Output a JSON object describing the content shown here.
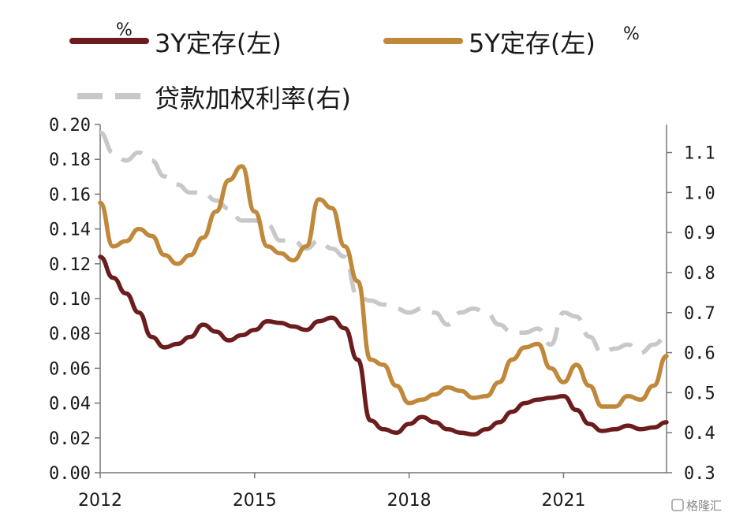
{
  "chart_data": {
    "type": "line",
    "x_range": [
      "2012-01",
      "2022-12"
    ],
    "xticks": [
      {
        "year": 2012,
        "label": "2012"
      },
      {
        "year": 2015,
        "label": "2015"
      },
      {
        "year": 2018,
        "label": "2018"
      },
      {
        "year": 2021,
        "label": "2021"
      }
    ],
    "y_left": {
      "unit": "%",
      "ylim": [
        0,
        0.2
      ],
      "ticks": [
        0,
        0.02,
        0.04,
        0.06,
        0.08,
        0.1,
        0.12,
        0.14,
        0.16,
        0.18,
        0.2
      ],
      "tick_labels": [
        "0.00",
        "0.02",
        "0.04",
        "0.06",
        "0.08",
        "0.10",
        "0.12",
        "0.14",
        "0.16",
        "0.18",
        "0.20"
      ]
    },
    "y_right": {
      "unit": "%",
      "ylim": [
        0.3,
        1.17
      ],
      "ticks": [
        0.3,
        0.4,
        0.5,
        0.6,
        0.7,
        0.8,
        0.9,
        1.0,
        1.1
      ],
      "tick_labels": [
        "0.3",
        "0.4",
        "0.5",
        "0.6",
        "0.7",
        "0.8",
        "0.9",
        "1.0",
        "1.1"
      ]
    },
    "grid": false,
    "legend_position": "top",
    "series": [
      {
        "name": "3Y定存(左)",
        "axis": "left",
        "color": "#6b1d1d",
        "style": "solid",
        "points": [
          [
            2012.0,
            0.124
          ],
          [
            2012.25,
            0.112
          ],
          [
            2012.5,
            0.103
          ],
          [
            2012.75,
            0.092
          ],
          [
            2013.0,
            0.078
          ],
          [
            2013.25,
            0.072
          ],
          [
            2013.5,
            0.074
          ],
          [
            2013.75,
            0.078
          ],
          [
            2014.0,
            0.085
          ],
          [
            2014.25,
            0.081
          ],
          [
            2014.5,
            0.076
          ],
          [
            2014.75,
            0.079
          ],
          [
            2015.0,
            0.082
          ],
          [
            2015.25,
            0.087
          ],
          [
            2015.5,
            0.086
          ],
          [
            2015.75,
            0.084
          ],
          [
            2016.0,
            0.082
          ],
          [
            2016.25,
            0.087
          ],
          [
            2016.5,
            0.089
          ],
          [
            2016.75,
            0.083
          ],
          [
            2017.0,
            0.065
          ],
          [
            2017.25,
            0.03
          ],
          [
            2017.5,
            0.025
          ],
          [
            2017.75,
            0.023
          ],
          [
            2018.0,
            0.028
          ],
          [
            2018.25,
            0.032
          ],
          [
            2018.5,
            0.029
          ],
          [
            2018.75,
            0.025
          ],
          [
            2019.0,
            0.023
          ],
          [
            2019.25,
            0.022
          ],
          [
            2019.5,
            0.025
          ],
          [
            2019.75,
            0.029
          ],
          [
            2020.0,
            0.035
          ],
          [
            2020.25,
            0.04
          ],
          [
            2020.5,
            0.042
          ],
          [
            2020.75,
            0.043
          ],
          [
            2021.0,
            0.044
          ],
          [
            2021.25,
            0.036
          ],
          [
            2021.5,
            0.028
          ],
          [
            2021.75,
            0.024
          ],
          [
            2022.0,
            0.025
          ],
          [
            2022.25,
            0.027
          ],
          [
            2022.5,
            0.025
          ],
          [
            2022.75,
            0.026
          ],
          [
            2023.0,
            0.029
          ]
        ]
      },
      {
        "name": "5Y定存(左)",
        "axis": "left",
        "color": "#c0883a",
        "style": "solid",
        "points": [
          [
            2012.0,
            0.155
          ],
          [
            2012.25,
            0.13
          ],
          [
            2012.5,
            0.133
          ],
          [
            2012.75,
            0.14
          ],
          [
            2013.0,
            0.136
          ],
          [
            2013.25,
            0.125
          ],
          [
            2013.5,
            0.12
          ],
          [
            2013.75,
            0.125
          ],
          [
            2014.0,
            0.135
          ],
          [
            2014.25,
            0.15
          ],
          [
            2014.5,
            0.168
          ],
          [
            2014.75,
            0.176
          ],
          [
            2015.0,
            0.15
          ],
          [
            2015.25,
            0.13
          ],
          [
            2015.5,
            0.126
          ],
          [
            2015.75,
            0.122
          ],
          [
            2016.0,
            0.13
          ],
          [
            2016.25,
            0.157
          ],
          [
            2016.5,
            0.152
          ],
          [
            2016.75,
            0.13
          ],
          [
            2017.0,
            0.11
          ],
          [
            2017.25,
            0.065
          ],
          [
            2017.5,
            0.062
          ],
          [
            2017.75,
            0.05
          ],
          [
            2018.0,
            0.04
          ],
          [
            2018.25,
            0.042
          ],
          [
            2018.5,
            0.045
          ],
          [
            2018.75,
            0.049
          ],
          [
            2019.0,
            0.047
          ],
          [
            2019.25,
            0.043
          ],
          [
            2019.5,
            0.044
          ],
          [
            2019.75,
            0.052
          ],
          [
            2020.0,
            0.065
          ],
          [
            2020.25,
            0.072
          ],
          [
            2020.5,
            0.074
          ],
          [
            2020.75,
            0.06
          ],
          [
            2021.0,
            0.052
          ],
          [
            2021.25,
            0.062
          ],
          [
            2021.5,
            0.05
          ],
          [
            2021.75,
            0.038
          ],
          [
            2022.0,
            0.038
          ],
          [
            2022.25,
            0.044
          ],
          [
            2022.5,
            0.042
          ],
          [
            2022.75,
            0.05
          ],
          [
            2023.0,
            0.067
          ]
        ]
      },
      {
        "name": "贷款加权利率(右)",
        "axis": "right",
        "color": "#c8c8c8",
        "style": "dashed",
        "points": [
          [
            2012.0,
            1.15
          ],
          [
            2012.25,
            1.1
          ],
          [
            2012.5,
            1.08
          ],
          [
            2012.75,
            1.1
          ],
          [
            2013.0,
            1.08
          ],
          [
            2013.25,
            1.04
          ],
          [
            2013.5,
            1.02
          ],
          [
            2013.75,
            1.0
          ],
          [
            2014.0,
            1.0
          ],
          [
            2014.25,
            0.98
          ],
          [
            2014.5,
            0.96
          ],
          [
            2014.75,
            0.93
          ],
          [
            2015.0,
            0.93
          ],
          [
            2015.25,
            0.92
          ],
          [
            2015.5,
            0.88
          ],
          [
            2015.75,
            0.88
          ],
          [
            2016.0,
            0.86
          ],
          [
            2016.25,
            0.88
          ],
          [
            2016.5,
            0.86
          ],
          [
            2016.75,
            0.84
          ],
          [
            2017.0,
            0.74
          ],
          [
            2017.25,
            0.73
          ],
          [
            2017.5,
            0.72
          ],
          [
            2017.75,
            0.71
          ],
          [
            2018.0,
            0.7
          ],
          [
            2018.25,
            0.71
          ],
          [
            2018.5,
            0.7
          ],
          [
            2018.75,
            0.67
          ],
          [
            2019.0,
            0.7
          ],
          [
            2019.25,
            0.71
          ],
          [
            2019.5,
            0.7
          ],
          [
            2019.75,
            0.67
          ],
          [
            2020.0,
            0.65
          ],
          [
            2020.25,
            0.65
          ],
          [
            2020.5,
            0.66
          ],
          [
            2020.75,
            0.62
          ],
          [
            2021.0,
            0.7
          ],
          [
            2021.25,
            0.69
          ],
          [
            2021.5,
            0.64
          ],
          [
            2021.75,
            0.6
          ],
          [
            2022.0,
            0.61
          ],
          [
            2022.25,
            0.62
          ],
          [
            2022.5,
            0.6
          ],
          [
            2022.75,
            0.62
          ],
          [
            2023.0,
            0.64
          ]
        ]
      }
    ]
  },
  "watermark": {
    "text": "格隆汇"
  }
}
